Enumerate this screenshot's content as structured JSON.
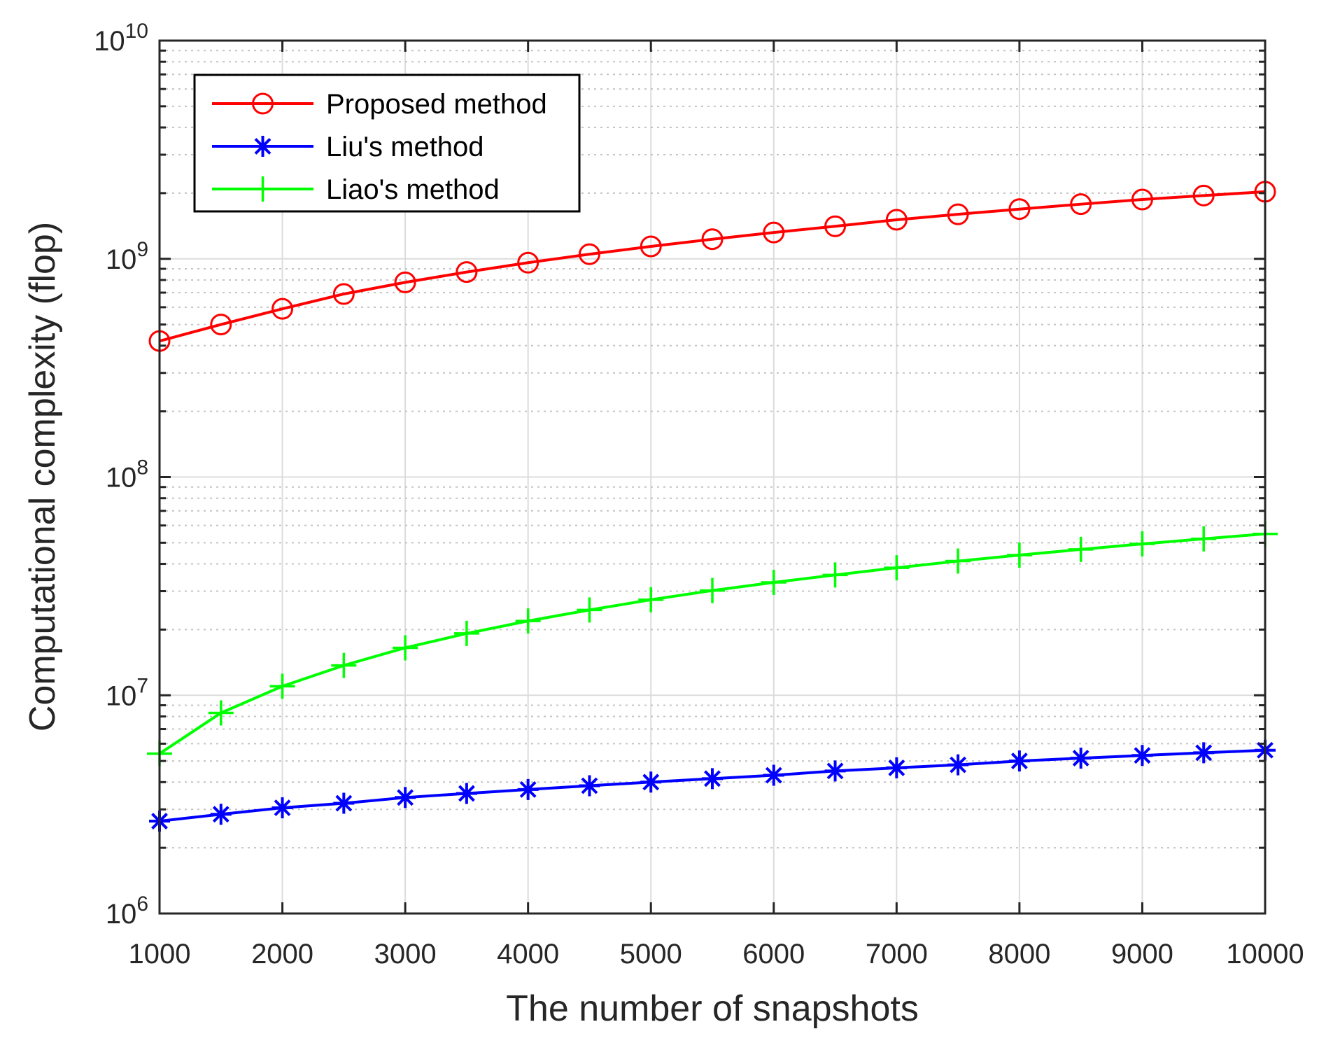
{
  "chart_data": {
    "type": "line",
    "title": "",
    "xlabel": "The number of snapshots",
    "ylabel": "Computational complexity (flop)",
    "xlim": [
      1000,
      10000
    ],
    "ylim": [
      1000000,
      10000000000
    ],
    "yscale": "log",
    "grid": true,
    "legend_position": "top-left",
    "x": [
      1000,
      1500,
      2000,
      2500,
      3000,
      3500,
      4000,
      4500,
      5000,
      5500,
      6000,
      6500,
      7000,
      7500,
      8000,
      8500,
      9000,
      9500,
      10000
    ],
    "x_ticks": [
      {
        "value": 1000,
        "label": "1000"
      },
      {
        "value": 2000,
        "label": "2000"
      },
      {
        "value": 3000,
        "label": "3000"
      },
      {
        "value": 4000,
        "label": "4000"
      },
      {
        "value": 5000,
        "label": "5000"
      },
      {
        "value": 6000,
        "label": "6000"
      },
      {
        "value": 7000,
        "label": "7000"
      },
      {
        "value": 8000,
        "label": "8000"
      },
      {
        "value": 9000,
        "label": "9000"
      },
      {
        "value": 10000,
        "label": "10000"
      }
    ],
    "y_ticks": [
      {
        "value": 1000000,
        "base": "10",
        "exp": "6"
      },
      {
        "value": 10000000,
        "base": "10",
        "exp": "7"
      },
      {
        "value": 100000000,
        "base": "10",
        "exp": "8"
      },
      {
        "value": 1000000000,
        "base": "10",
        "exp": "9"
      },
      {
        "value": 10000000000,
        "base": "10",
        "exp": "10"
      }
    ],
    "series": [
      {
        "name": "Proposed method",
        "color": "#ff0000",
        "marker": "circle",
        "values": [
          420000000,
          500000000,
          590000000,
          690000000,
          780000000,
          870000000,
          960000000,
          1050000000,
          1140000000,
          1230000000,
          1320000000,
          1410000000,
          1510000000,
          1600000000,
          1690000000,
          1780000000,
          1870000000,
          1950000000,
          2030000000
        ]
      },
      {
        "name": "Liu's method",
        "color": "#0000ff",
        "marker": "asterisk",
        "values": [
          2650000,
          2850000,
          3050000,
          3200000,
          3400000,
          3550000,
          3700000,
          3850000,
          4000000,
          4150000,
          4300000,
          4500000,
          4650000,
          4800000,
          5000000,
          5150000,
          5300000,
          5450000,
          5600000
        ]
      },
      {
        "name": "Liao's method",
        "color": "#00ff00",
        "marker": "plus",
        "values": [
          5400000,
          8300000,
          11000000,
          13700000,
          16500000,
          19200000,
          21900000,
          24600000,
          27400000,
          30200000,
          32900000,
          35600000,
          38400000,
          41200000,
          43900000,
          46600000,
          49400000,
          52100000,
          54900000
        ]
      }
    ]
  }
}
